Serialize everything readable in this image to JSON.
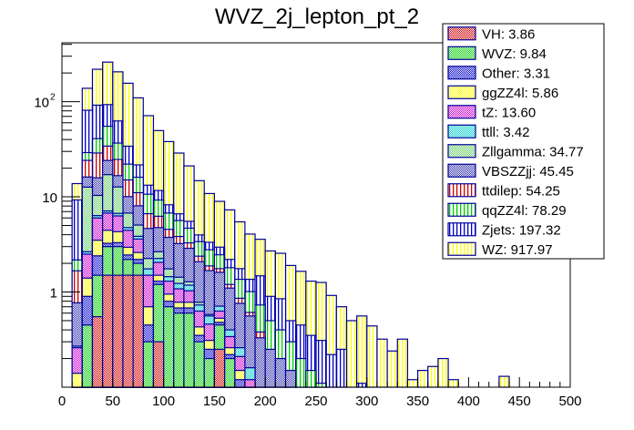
{
  "chart_data": {
    "type": "bar",
    "stacked": true,
    "title": "WVZ_2j_lepton_pt_2",
    "xlabel": "",
    "ylabel": "",
    "xlim": [
      0,
      500
    ],
    "ylim": [
      0.1,
      415
    ],
    "yscale": "log",
    "bin_width": 10,
    "x_ticks": [
      "0",
      "50",
      "100",
      "150",
      "200",
      "250",
      "300",
      "350",
      "400",
      "450",
      "500"
    ],
    "x_tick_values": [
      0,
      50,
      100,
      150,
      200,
      250,
      300,
      350,
      400,
      450,
      500
    ],
    "y_ticks": [
      {
        "value": 1,
        "label": "1"
      },
      {
        "value": 10,
        "label": "10"
      },
      {
        "value": 100,
        "label": "10",
        "sup": "2"
      }
    ],
    "legend_position": "top-right",
    "bins_low": [
      10,
      20,
      30,
      40,
      50,
      60,
      70,
      80,
      90,
      100,
      110,
      120,
      130,
      140,
      150,
      160,
      170,
      180,
      190,
      200,
      210,
      220,
      230,
      240,
      250,
      260,
      270,
      280,
      290,
      300,
      310,
      320,
      330,
      340,
      350,
      360,
      370,
      380,
      430
    ],
    "series": [
      {
        "name": "VH",
        "integral": "3.86",
        "color": "#cc0000",
        "pattern": "check",
        "values": [
          0,
          0,
          0.55,
          1.5,
          1.5,
          1.5,
          1.5,
          0,
          0.3,
          0,
          0,
          0,
          0,
          0,
          0.25,
          0,
          0,
          0,
          0,
          0,
          0,
          0,
          0,
          0,
          0,
          0,
          0,
          0,
          0,
          0,
          0,
          0,
          0,
          0,
          0,
          0,
          0,
          0,
          0
        ]
      },
      {
        "name": "WVZ",
        "integral": "9.84",
        "color": "#00cc00",
        "pattern": "check",
        "values": [
          0,
          0.45,
          0.95,
          1.5,
          1.5,
          0.7,
          0.5,
          0.3,
          0.9,
          0.7,
          0.6,
          0.6,
          0.3,
          0.2,
          0.2,
          0.2,
          0.1,
          0.05,
          0,
          0,
          0,
          0,
          0,
          0,
          0,
          0,
          0,
          0,
          0,
          0,
          0,
          0,
          0,
          0,
          0,
          0,
          0,
          0,
          0
        ]
      },
      {
        "name": "Other",
        "integral": "3.31",
        "color": "#0000cc",
        "pattern": "check",
        "values": [
          0.02,
          0.45,
          0.9,
          0.25,
          0.3,
          0.25,
          0.2,
          0.15,
          0.1,
          0.1,
          0.08,
          0.08,
          0.05,
          0.05,
          0.03,
          0.02,
          0.02,
          0,
          0,
          0,
          0,
          0,
          0,
          0,
          0,
          0,
          0,
          0,
          0,
          0,
          0,
          0,
          0,
          0,
          0,
          0,
          0,
          0,
          0
        ]
      },
      {
        "name": "ggZZ4l",
        "integral": "5.86",
        "color": "#ffff00",
        "pattern": "check",
        "values": [
          0.12,
          0.5,
          1.1,
          1.2,
          1.0,
          0.5,
          0.4,
          0.25,
          0.2,
          0.15,
          0.1,
          0.1,
          0.08,
          0.06,
          0.05,
          0.04,
          0.03,
          0.02,
          0,
          0,
          0,
          0,
          0,
          0,
          0,
          0,
          0,
          0,
          0,
          0,
          0,
          0,
          0,
          0,
          0,
          0,
          0,
          0,
          0
        ]
      },
      {
        "name": "tZ",
        "integral": "13.60",
        "color": "#cc00cc",
        "pattern": "check",
        "values": [
          0.12,
          1.1,
          2.5,
          2.3,
          2.0,
          1.5,
          1.0,
          0.8,
          0.55,
          0.35,
          0.3,
          0.25,
          0.2,
          0.15,
          0.1,
          0.08,
          0.06,
          0.05,
          0,
          0,
          0,
          0,
          0,
          0,
          0,
          0,
          0,
          0,
          0,
          0,
          0,
          0,
          0,
          0,
          0,
          0,
          0,
          0,
          0
        ]
      },
      {
        "name": "ttll",
        "integral": "3.42",
        "color": "#00cccc",
        "pattern": "check",
        "values": [
          0.01,
          0.15,
          0.35,
          0.35,
          0.4,
          0.3,
          0.25,
          0.25,
          0.2,
          0.15,
          0.15,
          0.15,
          0.1,
          0.1,
          0.08,
          0.06,
          0.05,
          0.04,
          0.03,
          0,
          0,
          0,
          0,
          0,
          0,
          0,
          0,
          0,
          0,
          0,
          0,
          0,
          0,
          0,
          0,
          0,
          0,
          0,
          0
        ]
      },
      {
        "name": "Zllgamma",
        "integral": "34.77",
        "color": "#66cc66",
        "pattern": "check",
        "values": [
          0,
          10,
          4,
          10,
          6,
          2,
          1.2,
          0.5,
          0.4,
          0.3,
          0.2,
          0.1,
          0.05,
          0.02,
          0,
          0,
          0,
          0,
          0,
          0,
          0,
          0,
          0,
          0,
          0,
          0,
          0,
          0,
          0,
          0,
          0,
          0,
          0,
          0,
          0,
          0,
          0,
          0,
          0
        ]
      },
      {
        "name": "VBSZZjj",
        "integral": "45.45",
        "color": "#3333aa",
        "pattern": "check",
        "values": [
          0.5,
          3.5,
          5.5,
          7,
          4,
          3.3,
          3,
          2.4,
          2.1,
          2,
          1.8,
          1.6,
          1.3,
          1.1,
          0.9,
          0.7,
          0.5,
          0.4,
          0.3,
          0.25,
          0.2,
          0.15,
          0.1,
          0.07,
          0.05,
          0.03,
          0.02,
          0,
          0,
          0,
          0,
          0,
          0,
          0,
          0,
          0,
          0,
          0,
          0
        ]
      },
      {
        "name": "ttdilep",
        "integral": "54.25",
        "color": "#cc0000",
        "pattern": "vlines",
        "values": [
          0.9,
          8,
          13,
          10,
          8,
          5,
          3,
          2,
          1.5,
          0.8,
          0.6,
          0.4,
          0.3,
          0.2,
          0.15,
          0.1,
          0.1,
          0.05,
          0.05,
          0,
          0,
          0,
          0,
          0,
          0,
          0,
          0,
          0,
          0,
          0,
          0,
          0,
          0,
          0,
          0,
          0,
          0,
          0,
          0
        ]
      },
      {
        "name": "qqZZ4l",
        "integral": "78.29",
        "color": "#00cc00",
        "pattern": "vlines",
        "values": [
          0.5,
          5,
          12,
          21,
          12,
          7,
          5,
          4,
          3,
          2.2,
          1.8,
          1.4,
          1,
          0.9,
          0.7,
          0.6,
          0.5,
          0.4,
          0.35,
          0.25,
          0.2,
          0.15,
          0.1,
          0.08,
          0.06,
          0.04,
          0.03,
          0.02,
          0.01,
          0,
          0,
          0,
          0,
          0,
          0,
          0,
          0,
          0,
          0
        ]
      },
      {
        "name": "Zjets",
        "integral": "197.32",
        "color": "#0000cc",
        "pattern": "vlines",
        "values": [
          7.1,
          52,
          51,
          38,
          26,
          12,
          5.6,
          2.6,
          2.4,
          1.5,
          1,
          0.85,
          0.6,
          0.55,
          0.5,
          0.4,
          0.4,
          0.35,
          0.75,
          0.4,
          0.45,
          0.2,
          0.25,
          0.2,
          0.2,
          0.15,
          0.2,
          0.02,
          0.1,
          0.02,
          0,
          0,
          0,
          0,
          0,
          0.08,
          0,
          0,
          0
        ]
      },
      {
        "name": "WZ",
        "integral": "917.97",
        "color": "#ffff00",
        "pattern": "vlines",
        "values": [
          4.5,
          57,
          127,
          167,
          143,
          122,
          88,
          58,
          38,
          29.8,
          22.2,
          15.6,
          10.8,
          7.5,
          6,
          5.1,
          3.7,
          2.7,
          2.1,
          1.8,
          1.7,
          1.4,
          1.2,
          0.95,
          0.95,
          0.7,
          0.45,
          0.46,
          0.45,
          0.42,
          0.32,
          0.24,
          0.32,
          0.12,
          0.15,
          0.085,
          0.2,
          0.12,
          0.13
        ]
      }
    ]
  }
}
